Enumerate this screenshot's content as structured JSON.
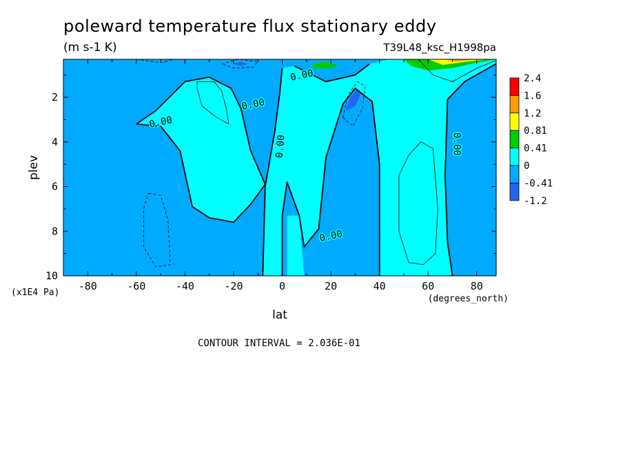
{
  "chart_data": {
    "type": "contour",
    "title": "poleward temperature flux stationary eddy",
    "units": "(m s-1 K)",
    "dataset": "T39L48_ksc_H1998pa",
    "xlabel": "lat",
    "xunits": "(degrees_north)",
    "ylabel": "plev",
    "yunits": "(x1E4 Pa)",
    "xlim": [
      -90,
      88
    ],
    "ylim": [
      10,
      0.3
    ],
    "y_inverted": true,
    "x_ticks": [
      -80,
      -60,
      -40,
      -20,
      0,
      20,
      40,
      60,
      80
    ],
    "y_ticks": [
      2,
      4,
      6,
      8,
      10
    ],
    "contour_interval_text": "CONTOUR INTERVAL = 2.036E-01",
    "zero_contour_label": "0.00",
    "colorbar": {
      "levels": [
        "2.4",
        "1.6",
        "1.2",
        "0.81",
        "0.41",
        "0",
        "-0.41",
        "-1.2"
      ],
      "colors": [
        "#ff0000",
        "#ff9900",
        "#ffff00",
        "#00cc00",
        "#00ffff",
        "#00aaff",
        "#2266ee"
      ]
    },
    "regions": [
      {
        "level": "0..0.41",
        "color": "#00ffff",
        "description": "central Southern Hemisphere upper lobe",
        "polygon": [
          [
            -60,
            3.2
          ],
          [
            -52,
            2.6
          ],
          [
            -40,
            1.3
          ],
          [
            -30,
            1.1
          ],
          [
            -21,
            1.6
          ],
          [
            -17,
            2.5
          ],
          [
            -13,
            4.4
          ],
          [
            -7,
            5.9
          ],
          [
            -13,
            6.8
          ],
          [
            -20,
            7.6
          ],
          [
            -30,
            7.4
          ],
          [
            -37,
            6.9
          ],
          [
            -42,
            4.4
          ],
          [
            -50,
            3.3
          ]
        ]
      },
      {
        "level": "0..0.41",
        "color": "#00ffff",
        "description": "equatorial and Northern Hemisphere band",
        "polygon": [
          [
            -8,
            10
          ],
          [
            -7,
            6
          ],
          [
            -3,
            3.5
          ],
          [
            -1,
            1.8
          ],
          [
            0,
            0.7
          ],
          [
            5,
            0.6
          ],
          [
            18,
            1.3
          ],
          [
            30,
            1.0
          ],
          [
            36,
            0.5
          ],
          [
            44,
            0.3
          ],
          [
            88,
            0.3
          ],
          [
            88,
            0.5
          ],
          [
            75,
            1.3
          ],
          [
            68,
            2.1
          ],
          [
            67,
            5.5
          ],
          [
            68,
            8.5
          ],
          [
            70,
            10
          ],
          [
            40,
            10
          ],
          [
            40,
            5
          ],
          [
            37,
            2.2
          ],
          [
            30,
            1.6
          ],
          [
            25,
            2.3
          ],
          [
            18,
            4.7
          ],
          [
            15,
            7.9
          ],
          [
            9,
            8.7
          ],
          [
            7,
            7.3
          ],
          [
            2,
            5.8
          ],
          [
            0,
            7.3
          ],
          [
            0,
            10
          ]
        ]
      },
      {
        "level": "0..0.41",
        "color": "#00ffff",
        "description": "equatorial lower tongue",
        "polygon": [
          [
            2,
            7.3
          ],
          [
            7,
            7.3
          ],
          [
            9,
            10
          ],
          [
            2,
            10
          ]
        ]
      },
      {
        "level": "0.41..0.81",
        "color": "#00cc00",
        "description": "northern subtropical jet maximum",
        "polygon": [
          [
            12,
            0.55
          ],
          [
            17,
            0.4
          ],
          [
            23,
            0.55
          ],
          [
            19,
            0.72
          ],
          [
            13,
            0.7
          ]
        ]
      },
      {
        "level": "0.41..0.81",
        "color": "#00cc00",
        "description": "polar upper maximum",
        "polygon": [
          [
            50,
            0.3
          ],
          [
            88,
            0.3
          ],
          [
            80,
            0.45
          ],
          [
            70,
            0.7
          ],
          [
            60,
            0.8
          ],
          [
            53,
            0.6
          ]
        ]
      },
      {
        "level": "0.81..1.2",
        "color": "#ffff00",
        "description": "polar upper core",
        "polygon": [
          [
            60,
            0.3
          ],
          [
            85,
            0.3
          ],
          [
            76,
            0.4
          ],
          [
            66,
            0.55
          ]
        ]
      },
      {
        "level": "1.2..1.6",
        "color": "#ff9900",
        "description": "polar upper peak",
        "polygon": [
          [
            66,
            0.3
          ],
          [
            80,
            0.3
          ],
          [
            72,
            0.4
          ]
        ]
      },
      {
        "level": "-1.2..-0.41",
        "color": "#2266ee",
        "description": "northern subtropical minimum",
        "polygon": [
          [
            26,
            2.6
          ],
          [
            28,
            2.0
          ],
          [
            31,
            1.65
          ],
          [
            32.5,
            1.8
          ],
          [
            30,
            2.4
          ]
        ]
      },
      {
        "level": "-1.2..-0.41",
        "color": "#2266ee",
        "description": "southern tropical minimum",
        "polygon": [
          [
            -20,
            0.5
          ],
          [
            -17,
            0.4
          ],
          [
            -14,
            0.5
          ],
          [
            -17,
            0.6
          ]
        ]
      }
    ],
    "thin_contours": [
      {
        "style": "solid",
        "points": [
          [
            -35,
            1.3
          ],
          [
            -28,
            1.3
          ],
          [
            -25,
            1.7
          ],
          [
            -23,
            2.5
          ],
          [
            -22,
            3.2
          ],
          [
            -27,
            2.9
          ],
          [
            -33,
            2.4
          ],
          [
            -35,
            1.6
          ],
          [
            -35,
            1.3
          ]
        ]
      },
      {
        "style": "solid",
        "points": [
          [
            52,
            4.6
          ],
          [
            57,
            4.0
          ],
          [
            62,
            4.3
          ],
          [
            64,
            7.0
          ],
          [
            63,
            9.0
          ],
          [
            58,
            9.5
          ],
          [
            52,
            9.4
          ],
          [
            48,
            8.0
          ],
          [
            48,
            5.5
          ],
          [
            52,
            4.6
          ]
        ]
      },
      {
        "style": "solid",
        "points": [
          [
            56,
            0.3
          ],
          [
            62,
            1.0
          ],
          [
            70,
            1.3
          ],
          [
            80,
            0.7
          ],
          [
            88,
            0.35
          ]
        ]
      },
      {
        "style": "dashed",
        "points": [
          [
            -55,
            6.3
          ],
          [
            -50,
            6.4
          ],
          [
            -47,
            7.5
          ],
          [
            -46,
            9.5
          ],
          [
            -52,
            9.6
          ],
          [
            -57,
            8.7
          ],
          [
            -57,
            7.0
          ],
          [
            -55,
            6.3
          ]
        ]
      },
      {
        "style": "dashed",
        "points": [
          [
            -25,
            0.5
          ],
          [
            -18,
            0.3
          ],
          [
            -10,
            0.4
          ],
          [
            -12,
            0.65
          ],
          [
            -20,
            0.7
          ],
          [
            -25,
            0.5
          ]
        ]
      },
      {
        "style": "dashed",
        "points": [
          [
            25,
            2.9
          ],
          [
            27,
            1.9
          ],
          [
            31,
            1.3
          ],
          [
            34,
            1.5
          ],
          [
            33,
            2.5
          ],
          [
            29,
            3.3
          ],
          [
            25,
            2.9
          ]
        ]
      },
      {
        "style": "dashed",
        "points": [
          [
            -60,
            0.3
          ],
          [
            -50,
            0.45
          ],
          [
            -45,
            0.3
          ]
        ]
      }
    ],
    "zero_contours": [
      [
        [
          -60,
          3.2
        ],
        [
          -52,
          2.6
        ],
        [
          -40,
          1.3
        ],
        [
          -30,
          1.1
        ],
        [
          -21,
          1.6
        ],
        [
          -17,
          2.5
        ],
        [
          -13,
          4.4
        ],
        [
          -7,
          5.9
        ],
        [
          -13,
          6.8
        ],
        [
          -20,
          7.6
        ],
        [
          -30,
          7.4
        ],
        [
          -37,
          6.9
        ],
        [
          -42,
          4.4
        ],
        [
          -50,
          3.3
        ],
        [
          -60,
          3.2
        ]
      ],
      [
        [
          -8,
          10
        ],
        [
          -7,
          6
        ],
        [
          -3,
          3.5
        ],
        [
          -1,
          1.8
        ],
        [
          0,
          0.7
        ]
      ],
      [
        [
          0,
          10
        ],
        [
          0,
          7.3
        ],
        [
          2,
          5.8
        ],
        [
          7,
          7.3
        ],
        [
          9,
          8.7
        ],
        [
          15,
          7.9
        ],
        [
          18,
          4.7
        ],
        [
          25,
          2.3
        ],
        [
          30,
          1.6
        ],
        [
          37,
          2.2
        ],
        [
          40,
          5
        ],
        [
          40,
          10
        ]
      ],
      [
        [
          70,
          10
        ],
        [
          68,
          8.5
        ],
        [
          67,
          5.5
        ],
        [
          68,
          2.1
        ],
        [
          75,
          1.3
        ],
        [
          88,
          0.5
        ]
      ],
      [
        [
          5,
          0.6
        ],
        [
          18,
          1.3
        ],
        [
          30,
          1.0
        ],
        [
          36,
          0.5
        ]
      ]
    ],
    "contour_labels": [
      {
        "x": -50,
        "y": 3.1
      },
      {
        "x": -12,
        "y": 2.3
      },
      {
        "x": 8,
        "y": 1.0
      },
      {
        "x": -1,
        "y": 4.2
      },
      {
        "x": 20,
        "y": 8.2
      },
      {
        "x": 72,
        "y": 4.1
      }
    ]
  }
}
